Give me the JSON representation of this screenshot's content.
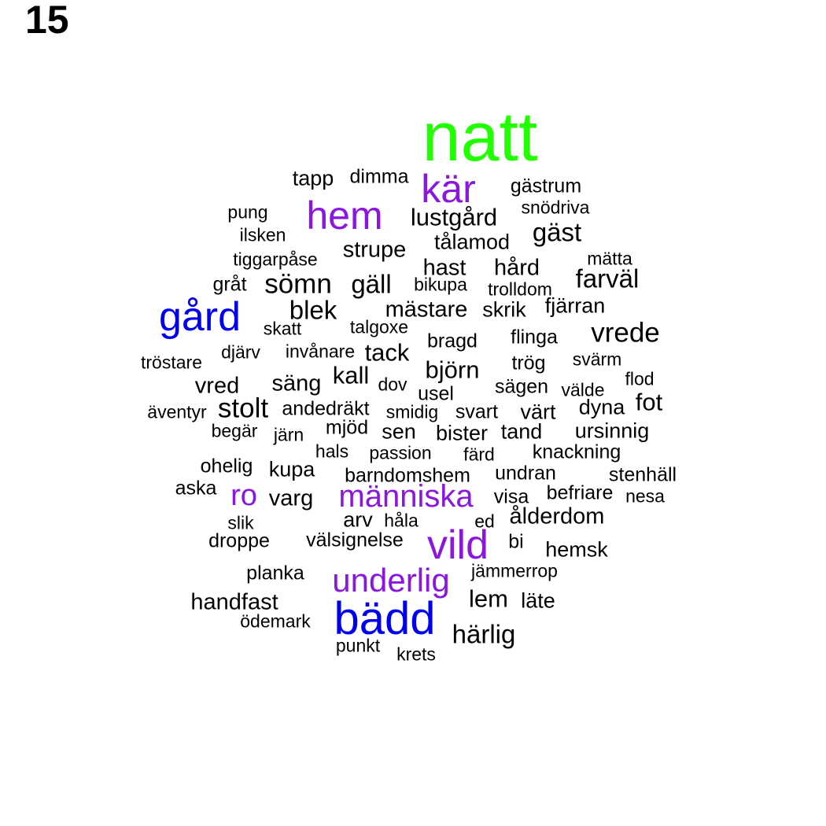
{
  "page_number": "15",
  "colors": {
    "top": "#22ff00",
    "high": "#0000ee",
    "mid": "#8a16e0",
    "base": "#000000"
  },
  "words": [
    {
      "text": "natt",
      "tier": "top"
    },
    {
      "text": "kär",
      "tier": "mid"
    },
    {
      "text": "tapp",
      "tier": "base"
    },
    {
      "text": "dimma",
      "tier": "base"
    },
    {
      "text": "gästrum",
      "tier": "base"
    },
    {
      "text": "pung",
      "tier": "base"
    },
    {
      "text": "hem",
      "tier": "mid"
    },
    {
      "text": "lustgård",
      "tier": "base"
    },
    {
      "text": "snödriva",
      "tier": "base"
    },
    {
      "text": "ilsken",
      "tier": "base"
    },
    {
      "text": "gäst",
      "tier": "base"
    },
    {
      "text": "tålamod",
      "tier": "base"
    },
    {
      "text": "strupe",
      "tier": "base"
    },
    {
      "text": "tiggarpåse",
      "tier": "base"
    },
    {
      "text": "mätta",
      "tier": "base"
    },
    {
      "text": "hast",
      "tier": "base"
    },
    {
      "text": "hård",
      "tier": "base"
    },
    {
      "text": "farväl",
      "tier": "base"
    },
    {
      "text": "gråt",
      "tier": "base"
    },
    {
      "text": "sömn",
      "tier": "base"
    },
    {
      "text": "gäll",
      "tier": "base"
    },
    {
      "text": "bikupa",
      "tier": "base"
    },
    {
      "text": "trolldom",
      "tier": "base"
    },
    {
      "text": "fjärran",
      "tier": "base"
    },
    {
      "text": "gård",
      "tier": "high"
    },
    {
      "text": "blek",
      "tier": "base"
    },
    {
      "text": "mästare",
      "tier": "base"
    },
    {
      "text": "skrik",
      "tier": "base"
    },
    {
      "text": "skatt",
      "tier": "base"
    },
    {
      "text": "talgoxe",
      "tier": "base"
    },
    {
      "text": "vrede",
      "tier": "base"
    },
    {
      "text": "flinga",
      "tier": "base"
    },
    {
      "text": "bragd",
      "tier": "base"
    },
    {
      "text": "djärv",
      "tier": "base"
    },
    {
      "text": "invånare",
      "tier": "base"
    },
    {
      "text": "tack",
      "tier": "base"
    },
    {
      "text": "tröstare",
      "tier": "base"
    },
    {
      "text": "svärm",
      "tier": "base"
    },
    {
      "text": "trög",
      "tier": "base"
    },
    {
      "text": "björn",
      "tier": "base"
    },
    {
      "text": "kall",
      "tier": "base"
    },
    {
      "text": "flod",
      "tier": "base"
    },
    {
      "text": "säng",
      "tier": "base"
    },
    {
      "text": "vred",
      "tier": "base"
    },
    {
      "text": "dov",
      "tier": "base"
    },
    {
      "text": "sägen",
      "tier": "base"
    },
    {
      "text": "välde",
      "tier": "base"
    },
    {
      "text": "usel",
      "tier": "base"
    },
    {
      "text": "fot",
      "tier": "base"
    },
    {
      "text": "dyna",
      "tier": "base"
    },
    {
      "text": "stolt",
      "tier": "base"
    },
    {
      "text": "äventyr",
      "tier": "base"
    },
    {
      "text": "andedräkt",
      "tier": "base"
    },
    {
      "text": "smidig",
      "tier": "base"
    },
    {
      "text": "svart",
      "tier": "base"
    },
    {
      "text": "värt",
      "tier": "base"
    },
    {
      "text": "begär",
      "tier": "base"
    },
    {
      "text": "mjöd",
      "tier": "base"
    },
    {
      "text": "ursinnig",
      "tier": "base"
    },
    {
      "text": "järn",
      "tier": "base"
    },
    {
      "text": "sen",
      "tier": "base"
    },
    {
      "text": "bister",
      "tier": "base"
    },
    {
      "text": "tand",
      "tier": "base"
    },
    {
      "text": "hals",
      "tier": "base"
    },
    {
      "text": "passion",
      "tier": "base"
    },
    {
      "text": "färd",
      "tier": "base"
    },
    {
      "text": "knackning",
      "tier": "base"
    },
    {
      "text": "ohelig",
      "tier": "base"
    },
    {
      "text": "kupa",
      "tier": "base"
    },
    {
      "text": "barndomshem",
      "tier": "base"
    },
    {
      "text": "undran",
      "tier": "base"
    },
    {
      "text": "stenhäll",
      "tier": "base"
    },
    {
      "text": "aska",
      "tier": "base"
    },
    {
      "text": "ro",
      "tier": "mid"
    },
    {
      "text": "varg",
      "tier": "base"
    },
    {
      "text": "människa",
      "tier": "mid"
    },
    {
      "text": "visa",
      "tier": "base"
    },
    {
      "text": "befriare",
      "tier": "base"
    },
    {
      "text": "nesa",
      "tier": "base"
    },
    {
      "text": "arv",
      "tier": "base"
    },
    {
      "text": "håla",
      "tier": "base"
    },
    {
      "text": "ed",
      "tier": "base"
    },
    {
      "text": "ålderdom",
      "tier": "base"
    },
    {
      "text": "slik",
      "tier": "base"
    },
    {
      "text": "droppe",
      "tier": "base"
    },
    {
      "text": "välsignelse",
      "tier": "base"
    },
    {
      "text": "vild",
      "tier": "mid"
    },
    {
      "text": "bi",
      "tier": "base"
    },
    {
      "text": "hemsk",
      "tier": "base"
    },
    {
      "text": "planka",
      "tier": "base"
    },
    {
      "text": "jämmerrop",
      "tier": "base"
    },
    {
      "text": "underlig",
      "tier": "mid"
    },
    {
      "text": "handfast",
      "tier": "base"
    },
    {
      "text": "lem",
      "tier": "base"
    },
    {
      "text": "läte",
      "tier": "base"
    },
    {
      "text": "bädd",
      "tier": "high"
    },
    {
      "text": "ödemark",
      "tier": "base"
    },
    {
      "text": "härlig",
      "tier": "base"
    },
    {
      "text": "punkt",
      "tier": "base"
    },
    {
      "text": "krets",
      "tier": "base"
    }
  ]
}
